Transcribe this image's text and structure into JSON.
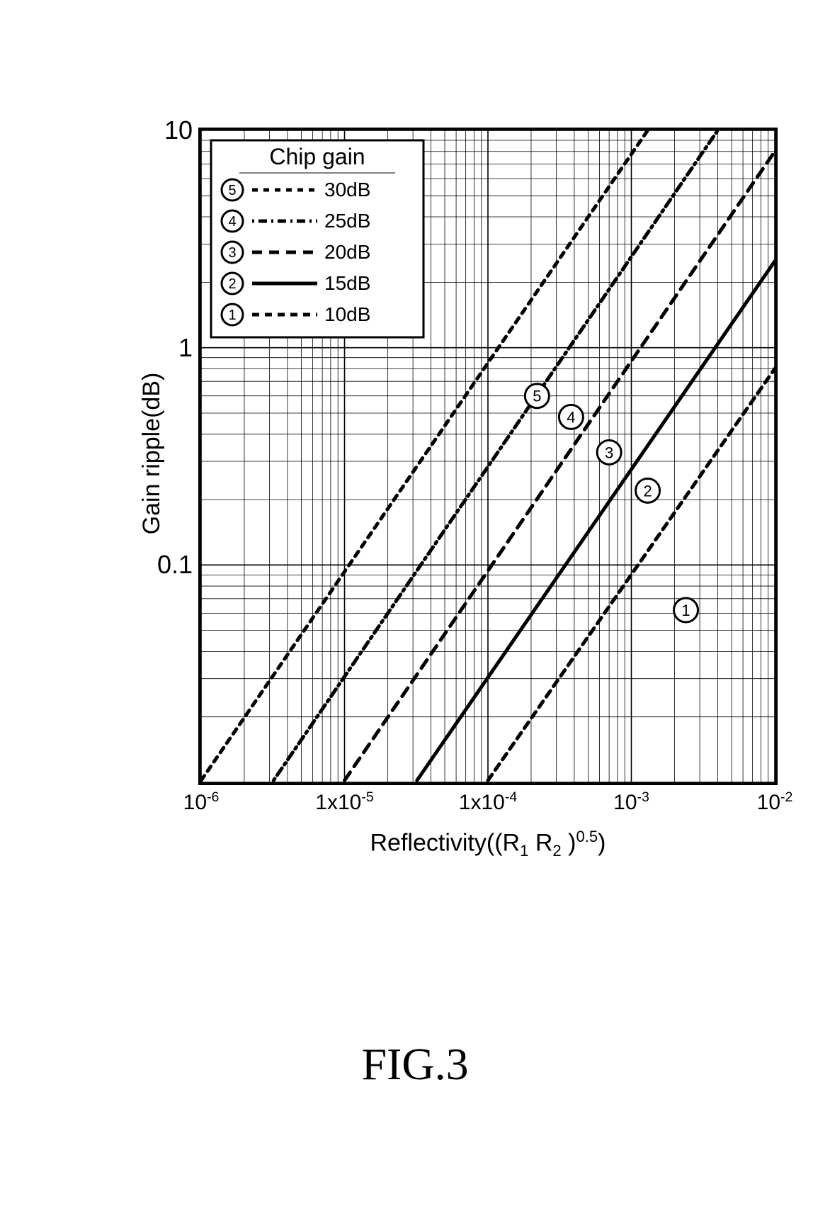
{
  "caption": "FIG.3",
  "chart": {
    "type": "loglog-line",
    "xlabel_html": "Reflectivity((R<sub>1</sub> R<sub>2</sub> )<sup>0.5</sup>)",
    "ylabel": "Gain ripple(dB)",
    "xlim": [
      1e-06,
      0.01
    ],
    "ylim": [
      0.01,
      10
    ],
    "xticks": [
      {
        "value": 1e-06,
        "label_html": "10<sup>-6</sup>"
      },
      {
        "value": 1e-05,
        "label_html": "1x10<sup>-5</sup>"
      },
      {
        "value": 0.0001,
        "label_html": "1x10<sup>-4</sup>"
      },
      {
        "value": 0.001,
        "label_html": "10<sup>-3</sup>"
      },
      {
        "value": 0.01,
        "label_html": "10<sup>-2</sup>"
      }
    ],
    "yticks": [
      {
        "value": 0.1,
        "label": "0.1"
      },
      {
        "value": 1,
        "label": "1"
      },
      {
        "value": 10,
        "label": "10"
      }
    ],
    "grid_major_color": "#000000",
    "grid_minor_color": "#000000",
    "grid_major_width": 1.6,
    "grid_minor_width": 0.8,
    "background_color": "#ffffff",
    "legend": {
      "title": "Chip gain",
      "position": "upper-left",
      "box_border_width": 3,
      "fontsize": 28,
      "items": [
        {
          "id": 5,
          "label": "30dB",
          "dash": "8 8",
          "width": 5
        },
        {
          "id": 4,
          "label": "25dB",
          "dash": "3 6 12 6",
          "width": 5
        },
        {
          "id": 3,
          "label": "20dB",
          "dash": "14 10",
          "width": 5
        },
        {
          "id": 2,
          "label": "15dB",
          "dash": "",
          "width": 5
        },
        {
          "id": 1,
          "label": "10dB",
          "dash": "10 8",
          "width": 5
        }
      ]
    },
    "series_bubbles": [
      {
        "id": 5,
        "x": 0.00022,
        "y": 0.6
      },
      {
        "id": 4,
        "x": 0.00038,
        "y": 0.48
      },
      {
        "id": 3,
        "x": 0.0007,
        "y": 0.33
      },
      {
        "id": 2,
        "x": 0.0013,
        "y": 0.22
      },
      {
        "id": 1,
        "x": 0.0024,
        "y": 0.062
      }
    ],
    "series": [
      {
        "id": 1,
        "dash": "10 8",
        "width": 5,
        "p1": {
          "x": 0.0001,
          "y": 0.0102
        },
        "p2": {
          "x": 0.01,
          "y": 0.8
        }
      },
      {
        "id": 2,
        "dash": "",
        "width": 5,
        "p1": {
          "x": 3.2e-05,
          "y": 0.0102
        },
        "p2": {
          "x": 0.01,
          "y": 2.5
        }
      },
      {
        "id": 3,
        "dash": "14 10",
        "width": 5,
        "p1": {
          "x": 1e-05,
          "y": 0.0102
        },
        "p2": {
          "x": 0.01,
          "y": 8.0
        }
      },
      {
        "id": 4,
        "dash": "3 6 12 6",
        "width": 5,
        "p1": {
          "x": 3.2e-06,
          "y": 0.0102
        },
        "p2": {
          "x": 0.004,
          "y": 10
        }
      },
      {
        "id": 5,
        "dash": "8 8",
        "width": 5,
        "p1": {
          "x": 1e-06,
          "y": 0.0102
        },
        "p2": {
          "x": 0.0013,
          "y": 10
        }
      }
    ],
    "line_color": "#000000",
    "axis_fontsize": 34,
    "tick_fontsize": 32
  }
}
